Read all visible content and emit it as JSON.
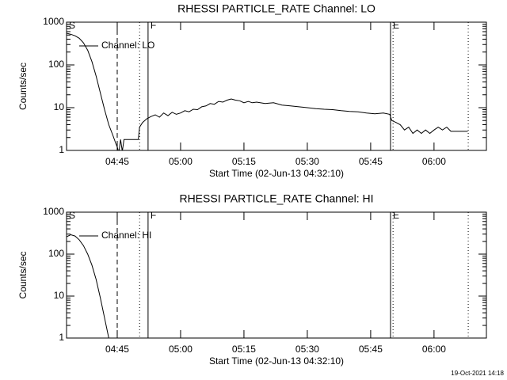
{
  "chart_data": [
    {
      "type": "line",
      "title": "RHESSI PARTICLE_RATE Channel: LO",
      "x_label": "Start Time (02-Jun-13 04:32:10)",
      "y_label": "Counts/sec",
      "xlim": [
        273,
        372.4
      ],
      "ylim": [
        1,
        1000
      ],
      "log_y": true,
      "xticks": [
        {
          "value": 285,
          "label": "04:45"
        },
        {
          "value": 300,
          "label": "05:00"
        },
        {
          "value": 315,
          "label": "05:15"
        },
        {
          "value": 330,
          "label": "05:30"
        },
        {
          "value": 345,
          "label": "05:45"
        },
        {
          "value": 360,
          "label": "06:00"
        }
      ],
      "yticks": [
        1,
        10,
        100,
        1000
      ],
      "vlines": [
        {
          "x": 285,
          "style": "dashed"
        },
        {
          "x": 290.3,
          "style": "dotted"
        },
        {
          "x": 292.3,
          "style": "solid"
        },
        {
          "x": 349.7,
          "style": "solid"
        },
        {
          "x": 350.3,
          "style": "dotted"
        },
        {
          "x": 368.1,
          "style": "dotted"
        }
      ],
      "markers": [
        {
          "label": "S",
          "x": 273
        },
        {
          "label": "F",
          "x": 292.3
        },
        {
          "label": "E",
          "x": 349.7
        }
      ],
      "series": [
        {
          "name": "Channel: LO",
          "color": "#000000",
          "x": [
            273,
            274,
            275,
            276,
            277,
            278,
            279,
            280,
            281,
            282,
            283,
            284,
            284.6,
            285,
            285.4,
            285.8,
            286.2,
            286.6,
            287,
            288,
            290,
            290.3,
            291,
            292,
            293,
            294,
            295,
            296,
            297,
            298,
            299,
            300,
            301,
            302,
            303,
            304,
            305,
            306,
            307,
            308,
            309,
            310,
            311,
            312,
            313,
            314,
            315,
            316,
            317,
            318,
            320,
            322,
            324,
            326,
            328,
            330,
            332,
            334,
            336,
            338,
            340,
            342,
            344,
            346,
            348,
            349.5,
            350,
            351,
            352,
            353,
            354,
            355,
            356,
            357,
            358,
            359,
            360,
            361,
            362,
            363,
            364,
            366,
            368
          ],
          "values": [
            550,
            520,
            480,
            420,
            330,
            220,
            120,
            55,
            22,
            9,
            4,
            2.2,
            1.5,
            1.2,
            0.9,
            1.8,
            0.95,
            1.8,
            1.8,
            1.8,
            1.8,
            3.5,
            4.5,
            5.5,
            6.2,
            6.8,
            6,
            7.5,
            6.5,
            7.8,
            7,
            7.5,
            8.5,
            8,
            9.2,
            9,
            10.5,
            11,
            12.5,
            12,
            14,
            13.5,
            15,
            16,
            15,
            14.5,
            13,
            14,
            13,
            13.5,
            12.5,
            13,
            11.5,
            11,
            10.5,
            10,
            9.5,
            9.2,
            9,
            8.5,
            8.2,
            8,
            7.5,
            7.2,
            7.5,
            7,
            5,
            4.5,
            4,
            3,
            3.5,
            2.5,
            3,
            2.5,
            3,
            2.5,
            3,
            3.5,
            3,
            3.5,
            2.8,
            2.8,
            2.8
          ]
        }
      ]
    },
    {
      "type": "line",
      "title": "RHESSI PARTICLE_RATE Channel: HI",
      "x_label": "Start Time (02-Jun-13 04:32:10)",
      "y_label": "Counts/sec",
      "xlim": [
        273,
        372.4
      ],
      "ylim": [
        1,
        1000
      ],
      "log_y": true,
      "xticks": [
        {
          "value": 285,
          "label": "04:45"
        },
        {
          "value": 300,
          "label": "05:00"
        },
        {
          "value": 315,
          "label": "05:15"
        },
        {
          "value": 330,
          "label": "05:30"
        },
        {
          "value": 345,
          "label": "05:45"
        },
        {
          "value": 360,
          "label": "06:00"
        }
      ],
      "yticks": [
        1,
        10,
        100,
        1000
      ],
      "vlines": [
        {
          "x": 285,
          "style": "dashed"
        },
        {
          "x": 290.3,
          "style": "dotted"
        },
        {
          "x": 292.3,
          "style": "solid"
        },
        {
          "x": 349.7,
          "style": "solid"
        },
        {
          "x": 350.3,
          "style": "dotted"
        },
        {
          "x": 368.1,
          "style": "dotted"
        }
      ],
      "markers": [
        {
          "label": "S",
          "x": 273
        },
        {
          "label": "F",
          "x": 292.3
        },
        {
          "label": "E",
          "x": 349.7
        }
      ],
      "series": [
        {
          "name": "Channel: HI",
          "color": "#000000",
          "x": [
            273,
            274,
            275,
            276,
            277,
            278,
            279,
            280,
            281,
            282,
            283
          ],
          "values": [
            260,
            290,
            270,
            220,
            160,
            100,
            55,
            25,
            9,
            3,
            1
          ]
        }
      ]
    }
  ],
  "footer": "19-Oct-2021 14:18"
}
